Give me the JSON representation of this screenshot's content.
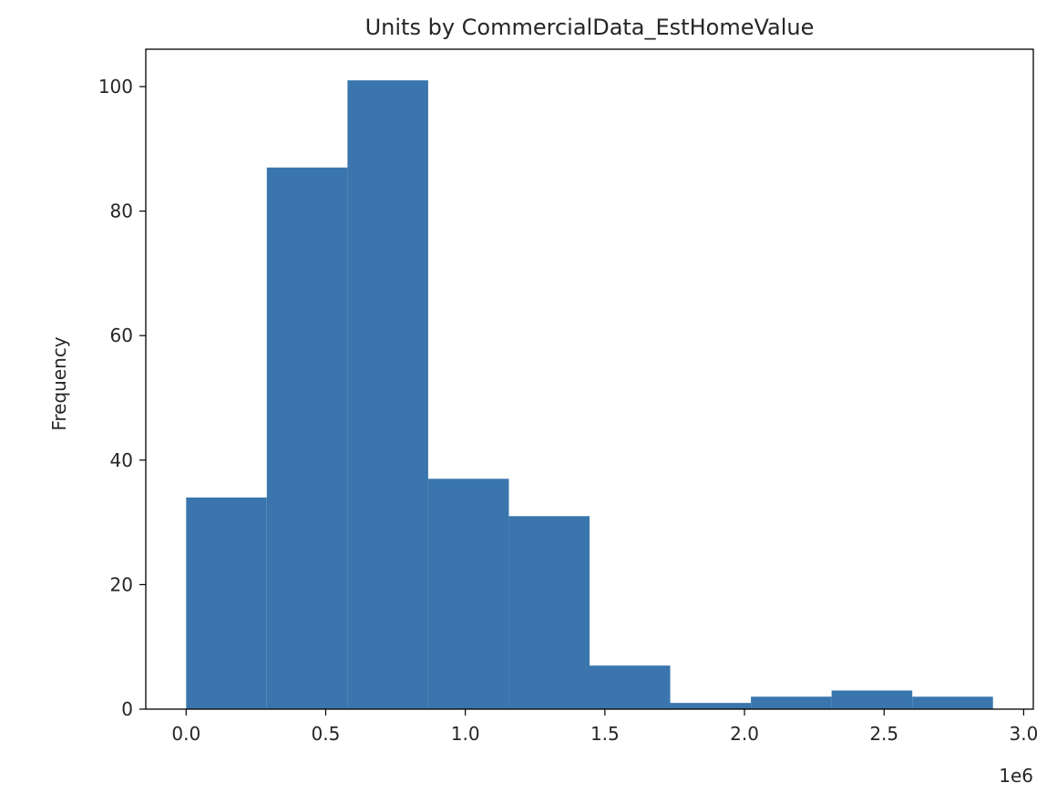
{
  "chart_data": {
    "type": "bar",
    "title": "Units by CommercialData_EstHomeValue",
    "xlabel": "",
    "ylabel": "Frequency",
    "x_offset_label": "1e6",
    "bin_edges": [
      0.0,
      0.289,
      0.578,
      0.867,
      1.156,
      1.445,
      1.734,
      2.023,
      2.312,
      2.601,
      2.89
    ],
    "values": [
      34,
      87,
      101,
      37,
      31,
      7,
      1,
      2,
      3,
      2
    ],
    "xlim": [
      -0.1445,
      3.0345
    ],
    "ylim": [
      0,
      106
    ],
    "x_ticks": [
      0.0,
      0.5,
      1.0,
      1.5,
      2.0,
      2.5,
      3.0
    ],
    "x_tick_labels": [
      "0.0",
      "0.5",
      "1.0",
      "1.5",
      "2.0",
      "2.5",
      "3.0"
    ],
    "y_ticks": [
      0,
      20,
      40,
      60,
      80,
      100
    ],
    "y_tick_labels": [
      "0",
      "20",
      "40",
      "60",
      "80",
      "100"
    ],
    "bar_color": "#3a76ad",
    "grid": false,
    "legend": "none"
  }
}
